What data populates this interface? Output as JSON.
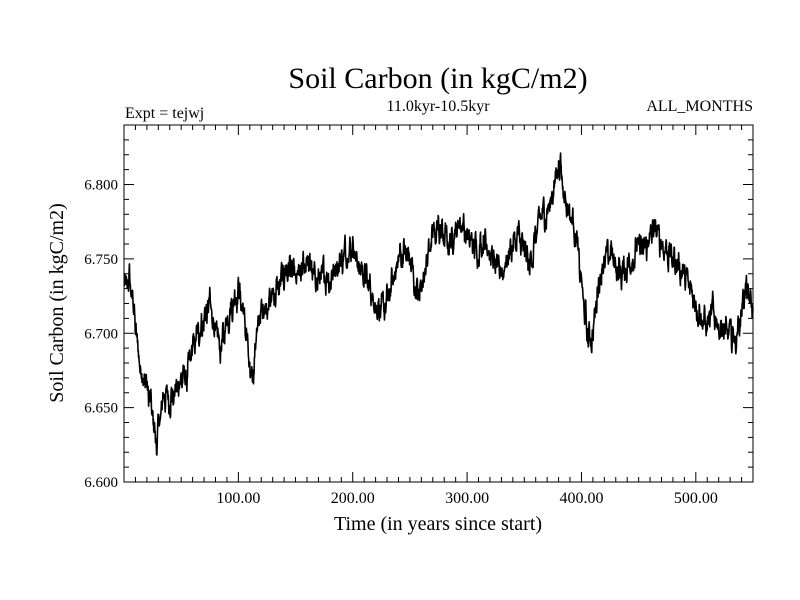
{
  "chart_data": {
    "type": "line",
    "title": "Soil Carbon (in kgC/m2)",
    "subtitle": "11.0kyr-10.5kyr",
    "left_note": "Expt = tejwj",
    "right_note": "ALL_MONTHS",
    "xlabel": "Time (in years since start)",
    "ylabel": "Soil Carbon (in kgC/m2)",
    "xlim": [
      0,
      550
    ],
    "ylim": [
      6.6,
      6.84
    ],
    "x_ticks": [
      {
        "value": 100,
        "label": "100.00"
      },
      {
        "value": 200,
        "label": "200.00"
      },
      {
        "value": 300,
        "label": "300.00"
      },
      {
        "value": 400,
        "label": "400.00"
      },
      {
        "value": 500,
        "label": "500.00"
      }
    ],
    "y_ticks": [
      {
        "value": 6.6,
        "label": "6.600"
      },
      {
        "value": 6.65,
        "label": "6.650"
      },
      {
        "value": 6.7,
        "label": "6.700"
      },
      {
        "value": 6.75,
        "label": "6.750"
      },
      {
        "value": 6.8,
        "label": "6.800"
      }
    ],
    "series": [
      {
        "name": "Soil Carbon",
        "color": "#000000",
        "points": [
          [
            0,
            6.73
          ],
          [
            5,
            6.735
          ],
          [
            8,
            6.72
          ],
          [
            12,
            6.69
          ],
          [
            15,
            6.675
          ],
          [
            20,
            6.665
          ],
          [
            25,
            6.645
          ],
          [
            28,
            6.625
          ],
          [
            31,
            6.64
          ],
          [
            35,
            6.66
          ],
          [
            40,
            6.655
          ],
          [
            45,
            6.66
          ],
          [
            50,
            6.67
          ],
          [
            55,
            6.67
          ],
          [
            60,
            6.69
          ],
          [
            65,
            6.7
          ],
          [
            70,
            6.71
          ],
          [
            75,
            6.72
          ],
          [
            80,
            6.7
          ],
          [
            85,
            6.69
          ],
          [
            90,
            6.71
          ],
          [
            95,
            6.72
          ],
          [
            100,
            6.73
          ],
          [
            103,
            6.72
          ],
          [
            107,
            6.7
          ],
          [
            110,
            6.67
          ],
          [
            113,
            6.675
          ],
          [
            116,
            6.7
          ],
          [
            120,
            6.715
          ],
          [
            125,
            6.72
          ],
          [
            130,
            6.725
          ],
          [
            135,
            6.73
          ],
          [
            140,
            6.74
          ],
          [
            145,
            6.745
          ],
          [
            150,
            6.735
          ],
          [
            155,
            6.74
          ],
          [
            160,
            6.75
          ],
          [
            165,
            6.74
          ],
          [
            170,
            6.735
          ],
          [
            175,
            6.74
          ],
          [
            180,
            6.735
          ],
          [
            185,
            6.745
          ],
          [
            190,
            6.75
          ],
          [
            195,
            6.755
          ],
          [
            200,
            6.76
          ],
          [
            205,
            6.745
          ],
          [
            210,
            6.74
          ],
          [
            215,
            6.73
          ],
          [
            220,
            6.72
          ],
          [
            225,
            6.715
          ],
          [
            230,
            6.72
          ],
          [
            235,
            6.735
          ],
          [
            240,
            6.75
          ],
          [
            245,
            6.755
          ],
          [
            250,
            6.75
          ],
          [
            255,
            6.73
          ],
          [
            258,
            6.725
          ],
          [
            262,
            6.74
          ],
          [
            266,
            6.755
          ],
          [
            270,
            6.765
          ],
          [
            275,
            6.77
          ],
          [
            280,
            6.765
          ],
          [
            285,
            6.76
          ],
          [
            290,
            6.77
          ],
          [
            295,
            6.775
          ],
          [
            300,
            6.765
          ],
          [
            305,
            6.76
          ],
          [
            310,
            6.755
          ],
          [
            315,
            6.765
          ],
          [
            320,
            6.755
          ],
          [
            325,
            6.745
          ],
          [
            330,
            6.74
          ],
          [
            335,
            6.75
          ],
          [
            340,
            6.76
          ],
          [
            345,
            6.765
          ],
          [
            350,
            6.755
          ],
          [
            355,
            6.745
          ],
          [
            360,
            6.765
          ],
          [
            365,
            6.78
          ],
          [
            370,
            6.78
          ],
          [
            375,
            6.795
          ],
          [
            380,
            6.815
          ],
          [
            383,
            6.805
          ],
          [
            386,
            6.79
          ],
          [
            390,
            6.78
          ],
          [
            393,
            6.775
          ],
          [
            396,
            6.76
          ],
          [
            399,
            6.74
          ],
          [
            402,
            6.72
          ],
          [
            405,
            6.7
          ],
          [
            408,
            6.695
          ],
          [
            411,
            6.705
          ],
          [
            414,
            6.73
          ],
          [
            418,
            6.745
          ],
          [
            422,
            6.75
          ],
          [
            426,
            6.755
          ],
          [
            430,
            6.745
          ],
          [
            435,
            6.74
          ],
          [
            440,
            6.745
          ],
          [
            445,
            6.75
          ],
          [
            450,
            6.76
          ],
          [
            455,
            6.755
          ],
          [
            460,
            6.765
          ],
          [
            465,
            6.77
          ],
          [
            470,
            6.76
          ],
          [
            475,
            6.755
          ],
          [
            480,
            6.75
          ],
          [
            485,
            6.745
          ],
          [
            490,
            6.74
          ],
          [
            495,
            6.73
          ],
          [
            500,
            6.72
          ],
          [
            505,
            6.71
          ],
          [
            510,
            6.705
          ],
          [
            515,
            6.715
          ],
          [
            520,
            6.705
          ],
          [
            525,
            6.7
          ],
          [
            530,
            6.7
          ],
          [
            535,
            6.695
          ],
          [
            540,
            6.715
          ],
          [
            543,
            6.73
          ],
          [
            546,
            6.725
          ],
          [
            550,
            6.715
          ]
        ]
      }
    ]
  }
}
